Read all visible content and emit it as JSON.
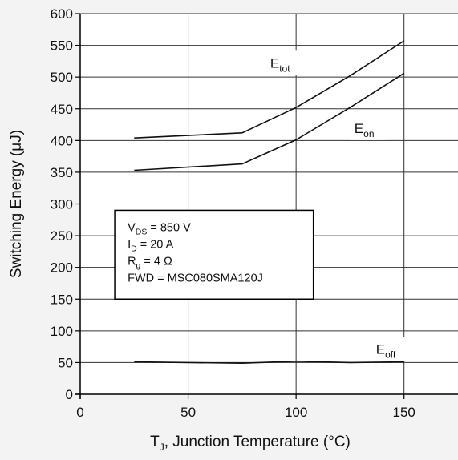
{
  "chart_data": {
    "type": "line",
    "title": "",
    "xlabel": {
      "main": "T",
      "sub": "J",
      "rest": ", Junction Temperature (°C)"
    },
    "ylabel": "Switching Energy (μJ)",
    "xlim": [
      0,
      175
    ],
    "ylim": [
      0,
      600
    ],
    "x_ticks": [
      "0",
      "50",
      "100",
      "150"
    ],
    "x_tick_values": [
      0,
      50,
      100,
      150
    ],
    "y_ticks": [
      "0",
      "50",
      "100",
      "150",
      "200",
      "250",
      "300",
      "350",
      "400",
      "450",
      "500",
      "550",
      "600"
    ],
    "y_tick_values": [
      0,
      50,
      100,
      150,
      200,
      250,
      300,
      350,
      400,
      450,
      500,
      550,
      600
    ],
    "grid": true,
    "colors": {
      "line": "#111111",
      "grid": "#333333",
      "plot_bg": "#ffffff",
      "page_bg": "#f3f3f3"
    },
    "series": [
      {
        "name": "E_tot",
        "label_main": "E",
        "label_sub": "tot",
        "x": [
          25,
          75,
          100,
          125,
          150
        ],
        "y": [
          404,
          412,
          452,
          502,
          557
        ]
      },
      {
        "name": "E_on",
        "label_main": "E",
        "label_sub": "on",
        "x": [
          25,
          75,
          100,
          125,
          150
        ],
        "y": [
          353,
          363,
          401,
          452,
          506
        ]
      },
      {
        "name": "E_off",
        "label_main": "E",
        "label_sub": "off",
        "x": [
          25,
          75,
          100,
          125,
          150
        ],
        "y": [
          51,
          49,
          52,
          50,
          51
        ]
      }
    ],
    "conditions": [
      {
        "main": "V",
        "sub": "DS",
        "rest": " = 850 V"
      },
      {
        "main": "I",
        "sub": "D",
        "rest": " = 20 A"
      },
      {
        "main": "R",
        "sub": "g",
        "rest": " = 4 Ω"
      },
      {
        "main": "FWD = MSC080SMA120J",
        "sub": "",
        "rest": ""
      }
    ]
  }
}
